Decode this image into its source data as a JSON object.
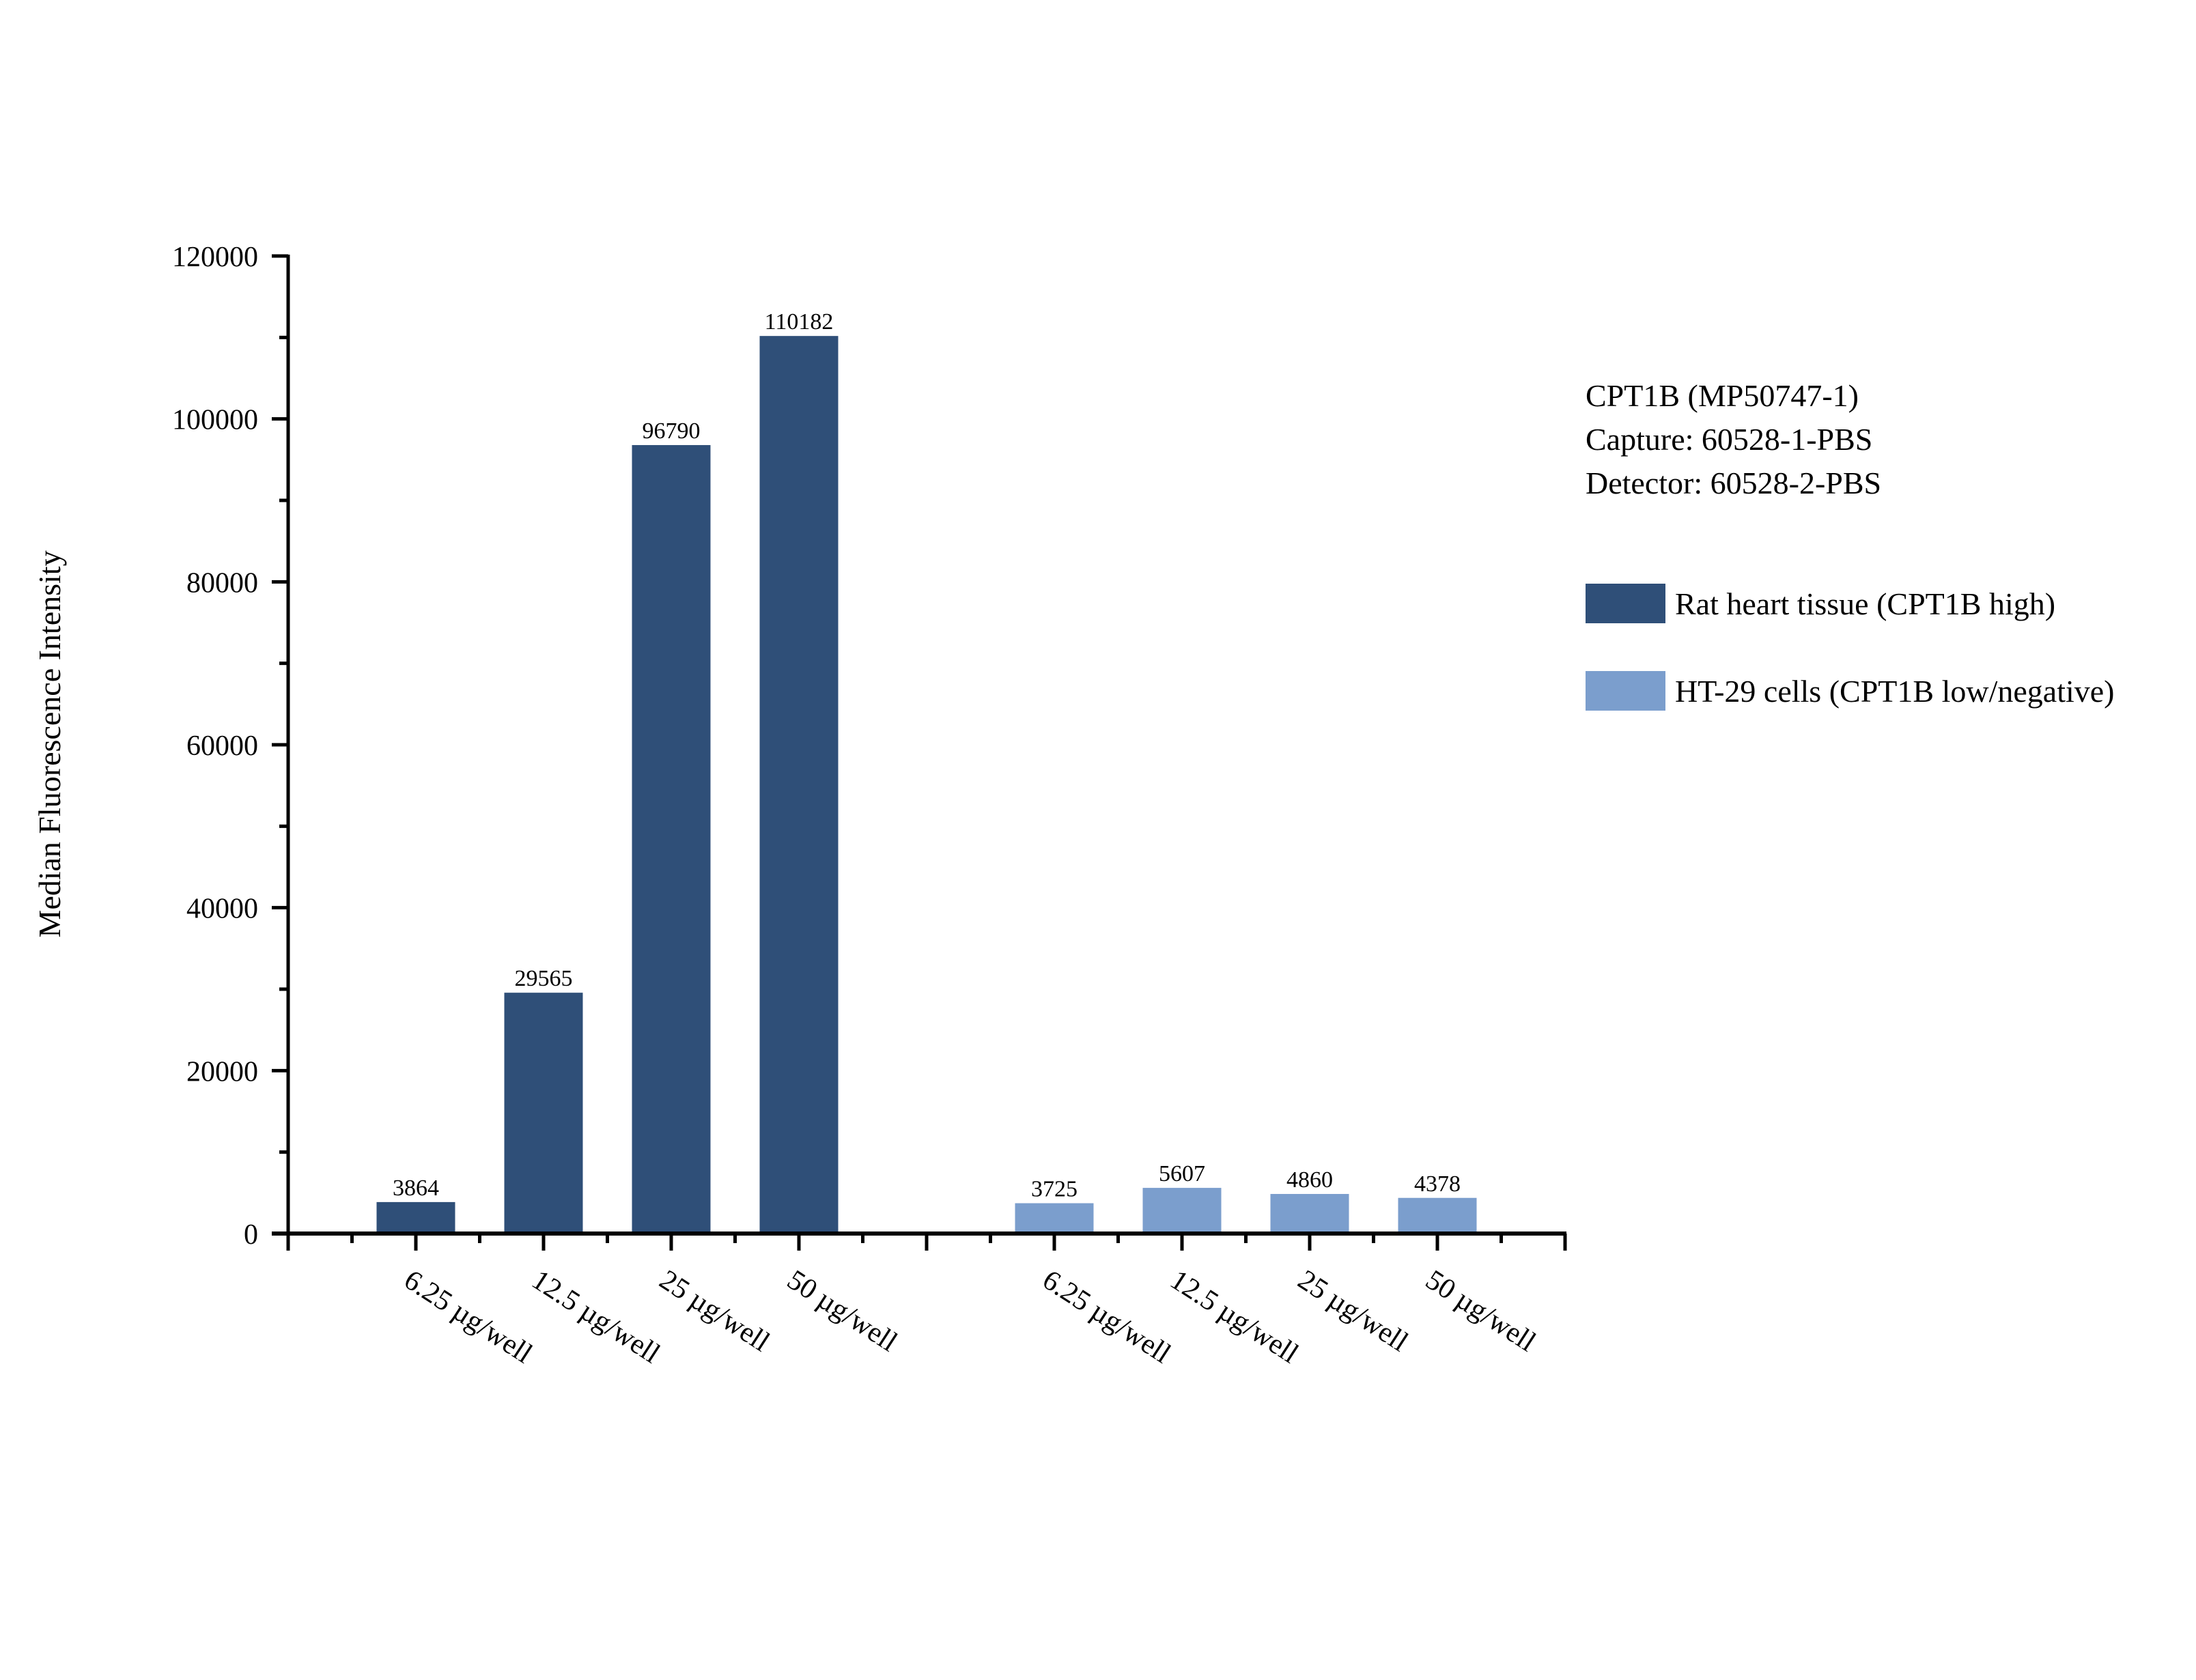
{
  "chart_data": {
    "type": "bar",
    "title": "",
    "xlabel": "",
    "ylabel": "Median Fluorescence Intensity",
    "ylim": [
      0,
      120000
    ],
    "yticks": [
      0,
      20000,
      40000,
      60000,
      80000,
      100000,
      120000
    ],
    "ytick_labels": [
      "0",
      "20000",
      "40000",
      "60000",
      "80000",
      "100000",
      "120000"
    ],
    "grid": false,
    "legend_position": "right",
    "annotation": [
      "CPT1B (MP50747-1)",
      "Capture: 60528-1-PBS",
      "Detector: 60528-2-PBS"
    ],
    "categories": [
      "6.25 µg/well",
      "12.5 µg/well",
      "25 µg/well",
      "50 µg/well"
    ],
    "series": [
      {
        "name": "Rat heart tissue (CPT1B high)",
        "color": "#2f4f78",
        "values": [
          3864,
          29565,
          96790,
          110182
        ]
      },
      {
        "name": "HT-29 cells (CPT1B low/negative)",
        "color": "#7b9ecd",
        "values": [
          3725,
          5607,
          4860,
          4378
        ]
      }
    ]
  },
  "annotation_lines": {
    "line1": "CPT1B (MP50747-1)",
    "line2": "Capture: 60528-1-PBS",
    "line3": "Detector: 60528-2-PBS"
  },
  "legend": {
    "item1": "Rat heart tissue (CPT1B high)",
    "item2": "HT-29 cells (CPT1B low/negative)"
  },
  "axis": {
    "ylabel": "Median Fluorescence Intensity"
  }
}
